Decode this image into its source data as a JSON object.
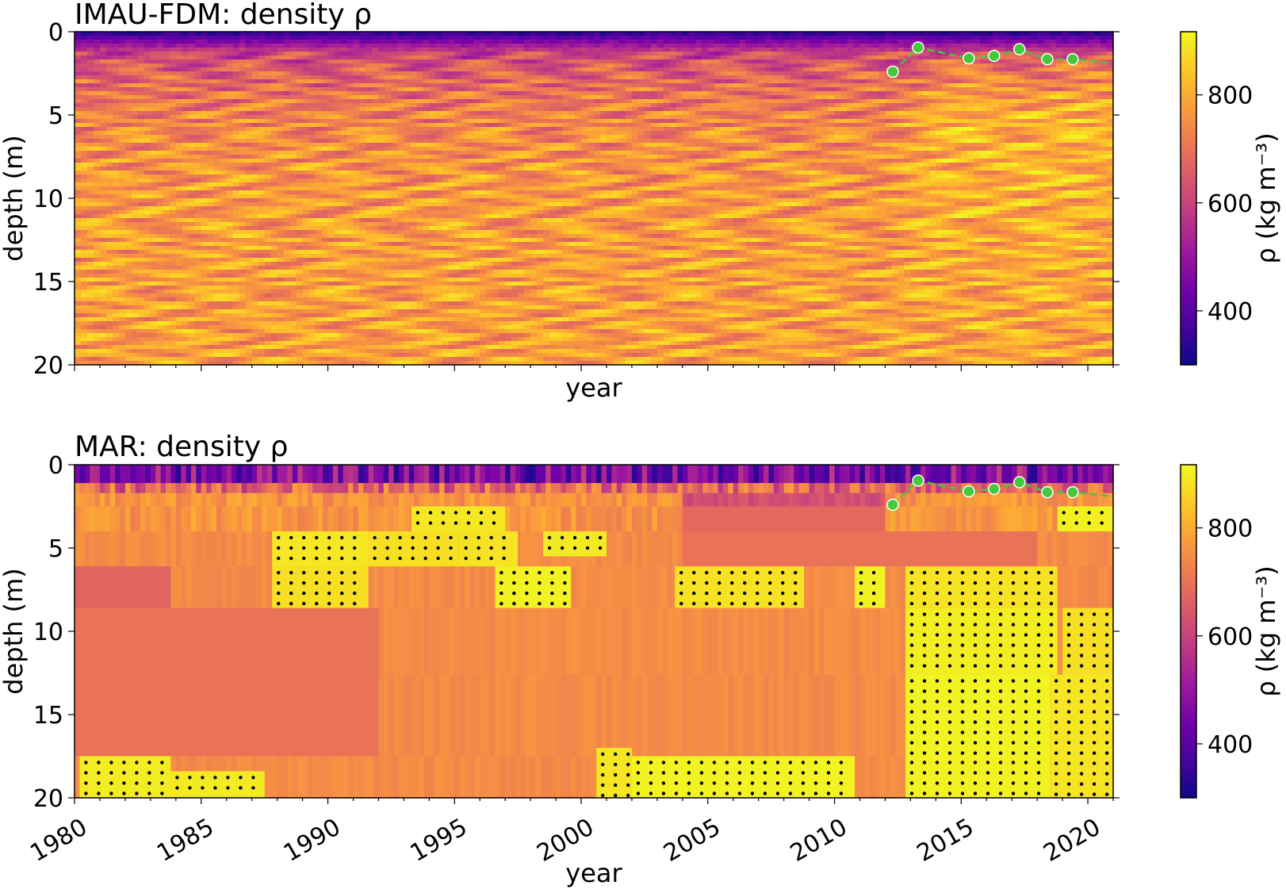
{
  "colormap": [
    "#0d0887",
    "#46039f",
    "#7201a8",
    "#9c179e",
    "#bd3786",
    "#d8576b",
    "#ed7953",
    "#fb9f3a",
    "#fdca26",
    "#f0f921"
  ],
  "colors": {
    "marker": "#44c83e",
    "marker_edge": "#ffffff",
    "line": "#44c83e",
    "stipple": "#000000"
  },
  "chart_data": [
    {
      "type": "heatmap",
      "title": "IMAU-FDM: density ρ",
      "xlabel": "year",
      "ylabel": "depth (m)",
      "colorbar_label": "ρ (kg m⁻³)",
      "xlim": [
        1980,
        2021
      ],
      "ylim": [
        20,
        0
      ],
      "x_ticks": [
        1980,
        1985,
        1990,
        1995,
        2000,
        2005,
        2010,
        2015,
        2020
      ],
      "x_ticklabels_shown": false,
      "y_ticks": [
        0,
        5,
        10,
        15,
        20
      ],
      "y_ticklabels": [
        "0",
        "5",
        "10",
        "15",
        "20"
      ],
      "clim": [
        300,
        917
      ],
      "cbar_ticks": [
        400,
        600,
        800
      ],
      "cbar_ticklabels": [
        "400",
        "600",
        "800"
      ],
      "observations": {
        "years": [
          2012.3,
          2013.3,
          2015.3,
          2016.3,
          2017.3,
          2018.4,
          2019.4,
          2021.0
        ],
        "depth": [
          2.4,
          0.95,
          1.6,
          1.45,
          1.05,
          1.65,
          1.65,
          1.9
        ],
        "marker_count": 7
      }
    },
    {
      "type": "heatmap",
      "title": "MAR: density ρ",
      "xlabel": "year",
      "ylabel": "depth (m)",
      "colorbar_label": "ρ (kg m⁻³)",
      "xlim": [
        1980,
        2021
      ],
      "ylim": [
        20,
        0
      ],
      "x_ticks": [
        1980,
        1985,
        1990,
        1995,
        2000,
        2005,
        2010,
        2015,
        2020
      ],
      "x_ticklabels": [
        "1980",
        "1985",
        "1990",
        "1995",
        "2000",
        "2005",
        "2010",
        "2015",
        "2020"
      ],
      "y_ticks": [
        0,
        5,
        10,
        15,
        20
      ],
      "y_ticklabels": [
        "0",
        "5",
        "10",
        "15",
        "20"
      ],
      "clim": [
        300,
        917
      ],
      "cbar_ticks": [
        400,
        600,
        800
      ],
      "cbar_ticklabels": [
        "400",
        "600",
        "800"
      ],
      "layer_bounds": [
        0,
        1.1,
        1.7,
        2.5,
        4.0,
        6.1,
        8.6,
        12.6,
        17.5,
        20
      ],
      "observations": {
        "years": [
          2012.3,
          2013.3,
          2015.3,
          2016.3,
          2017.3,
          2018.4,
          2019.4,
          2021.0
        ],
        "depth": [
          2.4,
          0.95,
          1.6,
          1.45,
          1.05,
          1.65,
          1.65,
          1.9
        ],
        "marker_count": 7
      },
      "ice_blocks": [
        {
          "years": [
            1980.2,
            1983.8
          ],
          "depth": [
            17.5,
            20
          ]
        },
        {
          "years": [
            1983.8,
            1987.5
          ],
          "depth": [
            18.4,
            20
          ]
        },
        {
          "years": [
            1987.8,
            1991.6
          ],
          "depth": [
            4.0,
            6.1
          ]
        },
        {
          "years": [
            1987.8,
            1991.6
          ],
          "depth": [
            6.1,
            8.6
          ]
        },
        {
          "years": [
            1991.6,
            1995.2
          ],
          "depth": [
            4.0,
            6.1
          ]
        },
        {
          "years": [
            1993.3,
            1997.0
          ],
          "depth": [
            2.5,
            4.0
          ]
        },
        {
          "years": [
            1995.2,
            1997.5
          ],
          "depth": [
            4.0,
            6.1
          ]
        },
        {
          "years": [
            1996.6,
            1999.6
          ],
          "depth": [
            6.1,
            8.6
          ]
        },
        {
          "years": [
            1998.5,
            2001.0
          ],
          "depth": [
            4.0,
            5.5
          ]
        },
        {
          "years": [
            2003.7,
            2008.8
          ],
          "depth": [
            6.1,
            8.6
          ]
        },
        {
          "years": [
            2010.8,
            2012.0
          ],
          "depth": [
            6.1,
            8.6
          ]
        },
        {
          "years": [
            2002.0,
            2010.8
          ],
          "depth": [
            17.5,
            20
          ]
        },
        {
          "years": [
            2000.6,
            2002.0
          ],
          "depth": [
            17.0,
            20
          ]
        },
        {
          "years": [
            2012.8,
            2018.8
          ],
          "depth": [
            8.6,
            12.6
          ]
        },
        {
          "years": [
            2012.8,
            2018.5
          ],
          "depth": [
            12.6,
            17.5
          ]
        },
        {
          "years": [
            2012.8,
            2018.5
          ],
          "depth": [
            17.5,
            20
          ]
        },
        {
          "years": [
            2018.5,
            2021.0
          ],
          "depth": [
            12.6,
            20
          ]
        },
        {
          "years": [
            2019.0,
            2021.0
          ],
          "depth": [
            8.6,
            12.6
          ]
        },
        {
          "years": [
            2018.8,
            2021.0
          ],
          "depth": [
            2.5,
            4.0
          ]
        },
        {
          "years": [
            2012.8,
            2018.8
          ],
          "depth": [
            6.1,
            8.6
          ]
        }
      ]
    }
  ]
}
